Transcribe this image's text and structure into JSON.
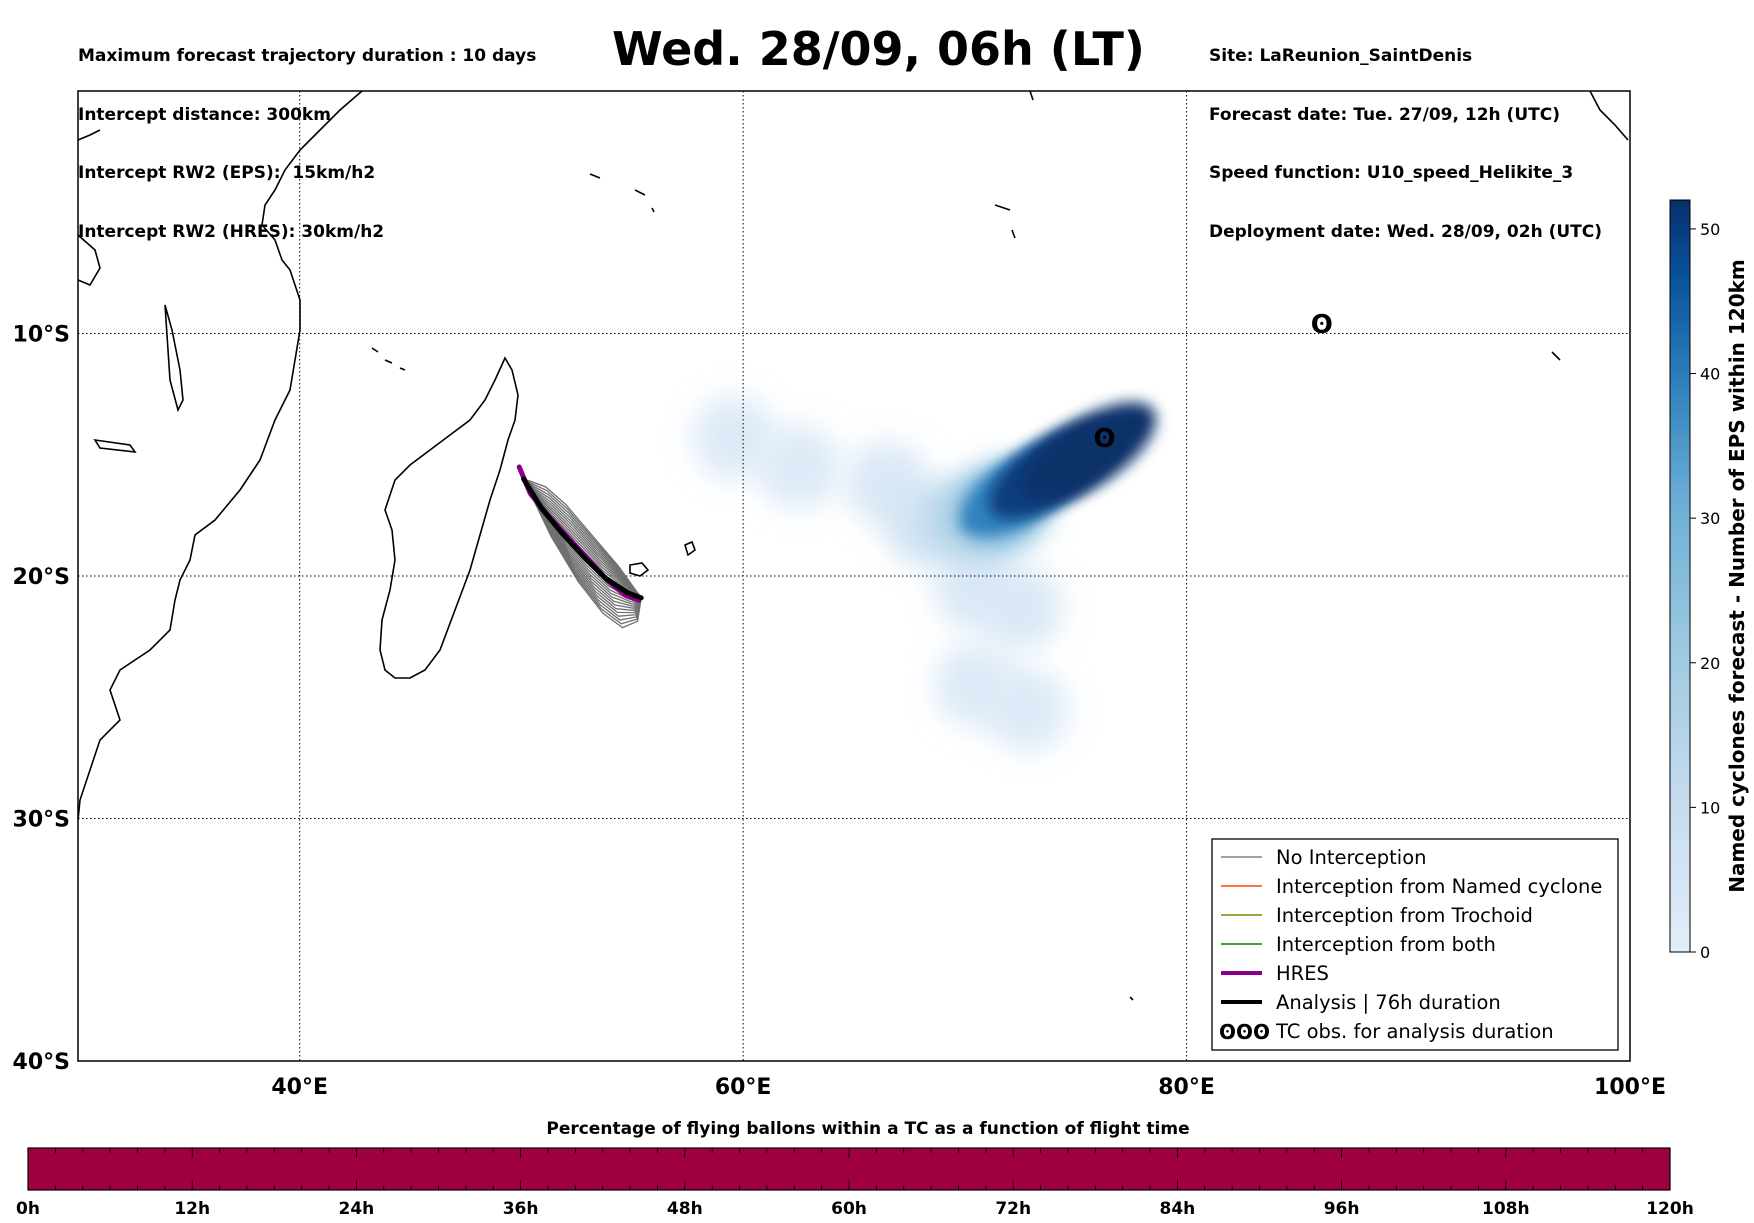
{
  "header": {
    "left_lines": [
      "Maximum forecast trajectory duration : 10 days",
      "Intercept distance: 300km",
      "Intercept RW2 (EPS):  15km/h2",
      "Intercept RW2 (HRES): 30km/h2"
    ],
    "title": "Wed. 28/09, 06h (LT)",
    "right_lines": [
      "Site: LaReunion_SaintDenis",
      "Forecast date: Tue. 27/09, 12h (UTC)",
      "Speed function: U10_speed_Helikite_3",
      "Deployment date: Wed. 28/09, 02h (UTC)"
    ]
  },
  "map": {
    "lon_range": [
      30,
      100
    ],
    "lat_range": [
      -40,
      0
    ],
    "lat_labels": [
      {
        "lat": -10,
        "text": "10°S"
      },
      {
        "lat": -20,
        "text": "20°S"
      },
      {
        "lat": -30,
        "text": "30°S"
      },
      {
        "lat": -40,
        "text": "40°S"
      }
    ],
    "lon_labels": [
      {
        "lon": 40,
        "text": "40°E"
      },
      {
        "lon": 60,
        "text": "60°E"
      },
      {
        "lon": 80,
        "text": "80°E"
      },
      {
        "lon": 100,
        "text": "100°E"
      }
    ],
    "tc_symbol": "ʘ",
    "tc_obs_current": {
      "lon": 76.3,
      "lat": -14.3
    },
    "tc_obs_far": {
      "lon": 86.1,
      "lat": -9.6
    }
  },
  "chart_data": {
    "type": "scatter",
    "title": "Wed. 28/09, 06h (LT)",
    "xlabel": "",
    "ylabel": "",
    "xlim": [
      30,
      100
    ],
    "ylim": [
      -40,
      0
    ],
    "series": [
      {
        "name": "HRES",
        "color": "#8b008b",
        "points": [
          [
            49.9,
            -15.5
          ],
          [
            50.4,
            -16.6
          ],
          [
            51.2,
            -17.5
          ],
          [
            52.1,
            -18.4
          ],
          [
            53.0,
            -19.3
          ],
          [
            53.9,
            -20.2
          ],
          [
            54.7,
            -20.8
          ],
          [
            55.3,
            -21.0
          ]
        ]
      },
      {
        "name": "Analysis | 76h duration",
        "color": "#000000",
        "points": [
          [
            50.1,
            -16.0
          ],
          [
            50.9,
            -17.2
          ],
          [
            51.8,
            -18.2
          ],
          [
            52.8,
            -19.2
          ],
          [
            53.8,
            -20.1
          ],
          [
            54.8,
            -20.7
          ],
          [
            55.4,
            -20.9
          ]
        ]
      }
    ],
    "eps_density": {
      "colorbar_label": "Named cyclones forecast - Number of EPS within 120km",
      "colorbar_range": [
        0,
        52
      ],
      "colorbar_ticks": [
        0,
        10,
        20,
        30,
        40,
        50
      ],
      "blobs": [
        {
          "lon": 75.6,
          "lat": -14.9,
          "value": 52
        },
        {
          "lon": 74.1,
          "lat": -15.6,
          "value": 50
        },
        {
          "lon": 72.8,
          "lat": -16.3,
          "value": 40
        },
        {
          "lon": 71.8,
          "lat": -17.1,
          "value": 28
        },
        {
          "lon": 70.3,
          "lat": -17.6,
          "value": 16
        },
        {
          "lon": 68.3,
          "lat": -17.9,
          "value": 6
        },
        {
          "lon": 66.5,
          "lat": -16.2,
          "value": 3
        },
        {
          "lon": 62.5,
          "lat": -15.5,
          "value": 2
        },
        {
          "lon": 59.6,
          "lat": -14.3,
          "value": 2
        },
        {
          "lon": 70.5,
          "lat": -20.5,
          "value": 3
        },
        {
          "lon": 70.5,
          "lat": -24.5,
          "value": 2
        },
        {
          "lon": 72.8,
          "lat": -25.5,
          "value": 2
        },
        {
          "lon": 72.5,
          "lat": -21.3,
          "value": 3
        }
      ]
    }
  },
  "legend": {
    "items": [
      {
        "label": "No Interception",
        "color": "#808080",
        "width": 1.5
      },
      {
        "label": "Interception from Named cyclone",
        "color": "#ff4500",
        "width": 1.5
      },
      {
        "label": "Interception from Trochoid",
        "color": "#808000",
        "width": 1.5
      },
      {
        "label": "Interception from both",
        "color": "#008000",
        "width": 1.5
      },
      {
        "label": "HRES",
        "color": "#8b008b",
        "width": 4
      },
      {
        "label": "Analysis | 76h duration",
        "color": "#000000",
        "width": 4
      },
      {
        "label": "TC obs. for analysis duration",
        "color": "#000000",
        "symbol": "ʘʘʘ"
      }
    ]
  },
  "timebar": {
    "title": "Percentage of flying ballons within a TC as a function of flight time",
    "color": "#9e0040",
    "ticks": [
      "0h",
      "12h",
      "24h",
      "36h",
      "48h",
      "60h",
      "72h",
      "84h",
      "96h",
      "108h",
      "120h"
    ]
  }
}
